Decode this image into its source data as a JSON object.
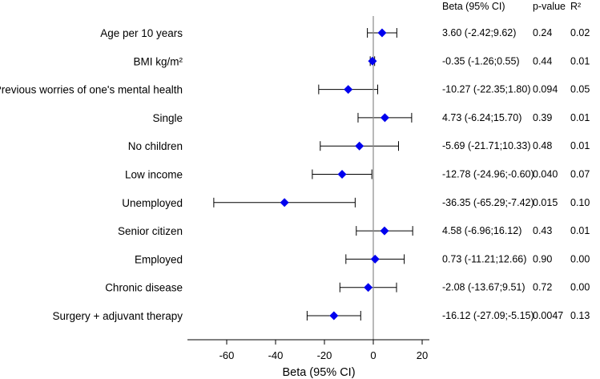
{
  "chart_data": {
    "type": "forest",
    "xlabel": "Beta (95% CI)",
    "xlim": [
      -68,
      22
    ],
    "xticks": [
      -60,
      -40,
      -20,
      0,
      20
    ],
    "reference_line": 0,
    "marker_color": "#0000ee",
    "column_headers": {
      "beta": "Beta (95% CI)",
      "p": "p-value",
      "r2": "R²"
    },
    "rows": [
      {
        "label": "Age per 10 years",
        "beta": 3.6,
        "lo": -2.42,
        "hi": 9.62,
        "beta_text": "3.60 (-2.42;9.62)",
        "p": "0.24",
        "r2": "0.02"
      },
      {
        "label": "BMI kg/m²",
        "beta": -0.35,
        "lo": -1.26,
        "hi": 0.55,
        "beta_text": "-0.35 (-1.26;0.55)",
        "p": "0.44",
        "r2": "0.01"
      },
      {
        "label": "Previous worries of one's mental health",
        "beta": -10.27,
        "lo": -22.35,
        "hi": 1.8,
        "beta_text": "-10.27 (-22.35;1.80)",
        "p": "0.094",
        "r2": "0.05"
      },
      {
        "label": "Single",
        "beta": 4.73,
        "lo": -6.24,
        "hi": 15.7,
        "beta_text": "4.73 (-6.24;15.70)",
        "p": "0.39",
        "r2": "0.01"
      },
      {
        "label": "No children",
        "beta": -5.69,
        "lo": -21.71,
        "hi": 10.33,
        "beta_text": "-5.69 (-21.71;10.33)",
        "p": "0.48",
        "r2": "0.01"
      },
      {
        "label": "Low income",
        "beta": -12.78,
        "lo": -24.96,
        "hi": -0.6,
        "beta_text": "-12.78 (-24.96;-0.60)",
        "p": "0.040",
        "r2": "0.07"
      },
      {
        "label": "Unemployed",
        "beta": -36.35,
        "lo": -65.29,
        "hi": -7.42,
        "beta_text": "-36.35 (-65.29;-7.42)",
        "p": "0.015",
        "r2": "0.10"
      },
      {
        "label": "Senior citizen",
        "beta": 4.58,
        "lo": -6.96,
        "hi": 16.12,
        "beta_text": "4.58 (-6.96;16.12)",
        "p": "0.43",
        "r2": "0.01"
      },
      {
        "label": "Employed",
        "beta": 0.73,
        "lo": -11.21,
        "hi": 12.66,
        "beta_text": "0.73 (-11.21;12.66)",
        "p": "0.90",
        "r2": "0.00"
      },
      {
        "label": "Chronic disease",
        "beta": -2.08,
        "lo": -13.67,
        "hi": 9.51,
        "beta_text": "-2.08 (-13.67;9.51)",
        "p": "0.72",
        "r2": "0.00"
      },
      {
        "label": "Surgery + adjuvant therapy",
        "beta": -16.12,
        "lo": -27.09,
        "hi": -5.15,
        "beta_text": "-16.12 (-27.09;-5.15)",
        "p": "0.0047",
        "r2": "0.13"
      }
    ]
  }
}
